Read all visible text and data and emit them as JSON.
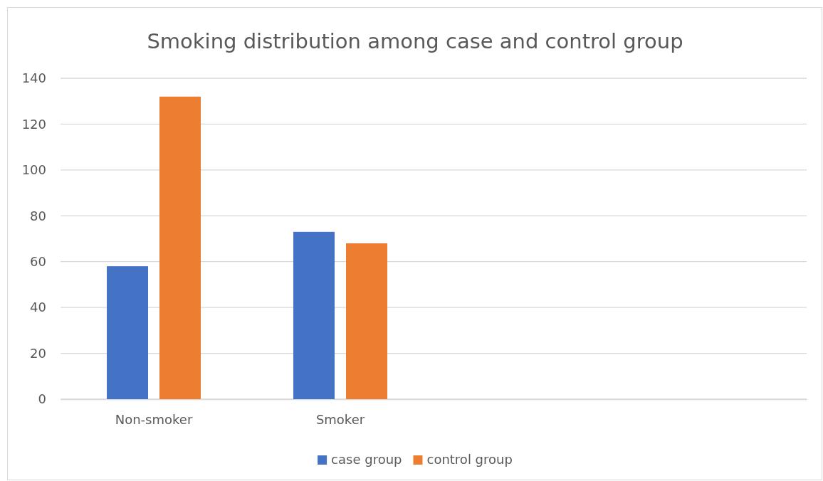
{
  "chart_data": {
    "type": "bar",
    "title": "Smoking distribution among case and control group",
    "categories": [
      "Non-smoker",
      "Smoker",
      null,
      null
    ],
    "series": [
      {
        "name": "case group",
        "color": "#4472c4",
        "values": [
          58,
          73,
          null,
          null
        ]
      },
      {
        "name": "control group",
        "color": "#ed7d31",
        "values": [
          132,
          68,
          null,
          null
        ]
      }
    ],
    "ylim": [
      0,
      140
    ],
    "yticks": [
      0,
      20,
      40,
      60,
      80,
      100,
      120,
      140
    ],
    "grid": "y",
    "legend": "bottom"
  }
}
